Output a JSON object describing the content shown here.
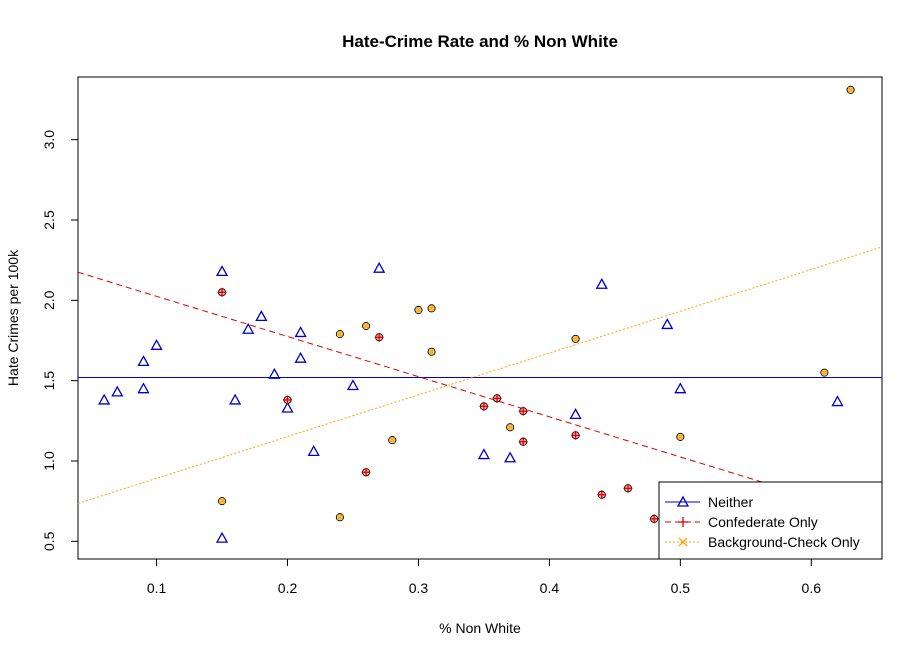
{
  "chart_data": {
    "type": "scatter",
    "title": "Hate-Crime Rate and % Non White",
    "xlabel": "% Non White",
    "ylabel": "Hate Crimes per 100k",
    "xlim": [
      0.04,
      0.654
    ],
    "ylim": [
      0.39,
      3.39
    ],
    "x_ticks": [
      0.1,
      0.2,
      0.3,
      0.4,
      0.5,
      0.6
    ],
    "x_tick_labels": [
      "0.1",
      "0.2",
      "0.3",
      "0.4",
      "0.5",
      "0.6"
    ],
    "y_ticks": [
      0.5,
      1.0,
      1.5,
      2.0,
      2.5,
      3.0
    ],
    "y_tick_labels": [
      "0.5",
      "1.0",
      "1.5",
      "2.0",
      "2.5",
      "3.0"
    ],
    "grid": false,
    "legend_position": "bottom-right",
    "series": [
      {
        "name": "Neither",
        "color": "#0000cc",
        "marker": "triangle",
        "line": {
          "type": "solid",
          "intercept": 1.52,
          "slope": 0
        },
        "points": [
          [
            0.06,
            1.38
          ],
          [
            0.07,
            1.43
          ],
          [
            0.09,
            1.62
          ],
          [
            0.09,
            1.45
          ],
          [
            0.1,
            1.72
          ],
          [
            0.15,
            2.18
          ],
          [
            0.15,
            0.52
          ],
          [
            0.16,
            1.38
          ],
          [
            0.17,
            1.82
          ],
          [
            0.18,
            1.9
          ],
          [
            0.19,
            1.54
          ],
          [
            0.2,
            1.33
          ],
          [
            0.21,
            1.8
          ],
          [
            0.21,
            1.64
          ],
          [
            0.22,
            1.06
          ],
          [
            0.25,
            1.47
          ],
          [
            0.27,
            2.2
          ],
          [
            0.35,
            1.04
          ],
          [
            0.37,
            1.02
          ],
          [
            0.42,
            1.29
          ],
          [
            0.44,
            2.1
          ],
          [
            0.49,
            1.85
          ],
          [
            0.5,
            1.45
          ],
          [
            0.62,
            1.37
          ]
        ]
      },
      {
        "name": "Confederate Only",
        "color": "#dd0000",
        "marker": "plus",
        "line": {
          "type": "dashed",
          "intercept": 2.275,
          "slope": -2.5
        },
        "points": [
          [
            0.15,
            2.05
          ],
          [
            0.2,
            1.38
          ],
          [
            0.26,
            0.93
          ],
          [
            0.27,
            1.77
          ],
          [
            0.35,
            1.34
          ],
          [
            0.36,
            1.39
          ],
          [
            0.38,
            1.31
          ],
          [
            0.38,
            1.12
          ],
          [
            0.42,
            1.16
          ],
          [
            0.44,
            0.79
          ],
          [
            0.46,
            0.83
          ],
          [
            0.48,
            0.64
          ]
        ]
      },
      {
        "name": "Background-Check Only",
        "color": "#ffa500",
        "marker": "x",
        "line": {
          "type": "dotted",
          "intercept": 0.632,
          "slope": 2.6
        },
        "points": [
          [
            0.15,
            0.75
          ],
          [
            0.24,
            1.79
          ],
          [
            0.24,
            0.65
          ],
          [
            0.26,
            1.84
          ],
          [
            0.28,
            1.13
          ],
          [
            0.3,
            1.94
          ],
          [
            0.31,
            1.95
          ],
          [
            0.31,
            1.68
          ],
          [
            0.37,
            1.21
          ],
          [
            0.42,
            1.76
          ],
          [
            0.5,
            1.15
          ],
          [
            0.61,
            1.55
          ],
          [
            0.63,
            3.31
          ]
        ]
      }
    ]
  }
}
